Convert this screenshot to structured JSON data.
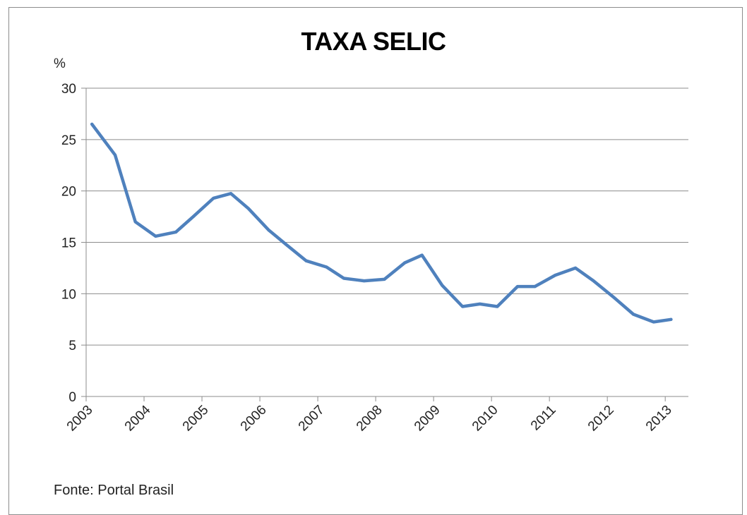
{
  "chart_data": {
    "type": "line",
    "title": "TAXA SELIC",
    "ylabel": "%",
    "xlabel": "",
    "ylim": [
      0,
      30
    ],
    "yticks": [
      0,
      5,
      10,
      15,
      20,
      25,
      30
    ],
    "x_categories": [
      "2003",
      "2004",
      "2005",
      "2006",
      "2007",
      "2008",
      "2009",
      "2010",
      "2011",
      "2012",
      "2013"
    ],
    "grid": true,
    "legend": "none",
    "color": "#4f81bd",
    "series": [
      {
        "x": [
          2003.1,
          2003.5,
          2003.85,
          2004.2,
          2004.55,
          2004.85,
          2005.2,
          2005.5,
          2005.8,
          2006.15,
          2006.45,
          2006.8,
          2007.15,
          2007.45,
          2007.8,
          2008.15,
          2008.5,
          2008.8,
          2009.15,
          2009.5,
          2009.8,
          2010.1,
          2010.45,
          2010.75,
          2011.1,
          2011.45,
          2011.75,
          2012.1,
          2012.45,
          2012.8,
          2013.1
        ],
        "values": [
          26.5,
          23.5,
          17.0,
          15.6,
          16.0,
          17.5,
          19.3,
          19.75,
          18.3,
          16.2,
          14.8,
          13.2,
          12.6,
          11.5,
          11.25,
          11.4,
          13.0,
          13.75,
          10.8,
          8.75,
          9.0,
          8.75,
          10.7,
          10.7,
          11.8,
          12.5,
          11.3,
          9.7,
          8.0,
          7.25,
          7.5
        ]
      }
    ]
  },
  "footer": {
    "source": "Fonte: Portal Brasil"
  }
}
